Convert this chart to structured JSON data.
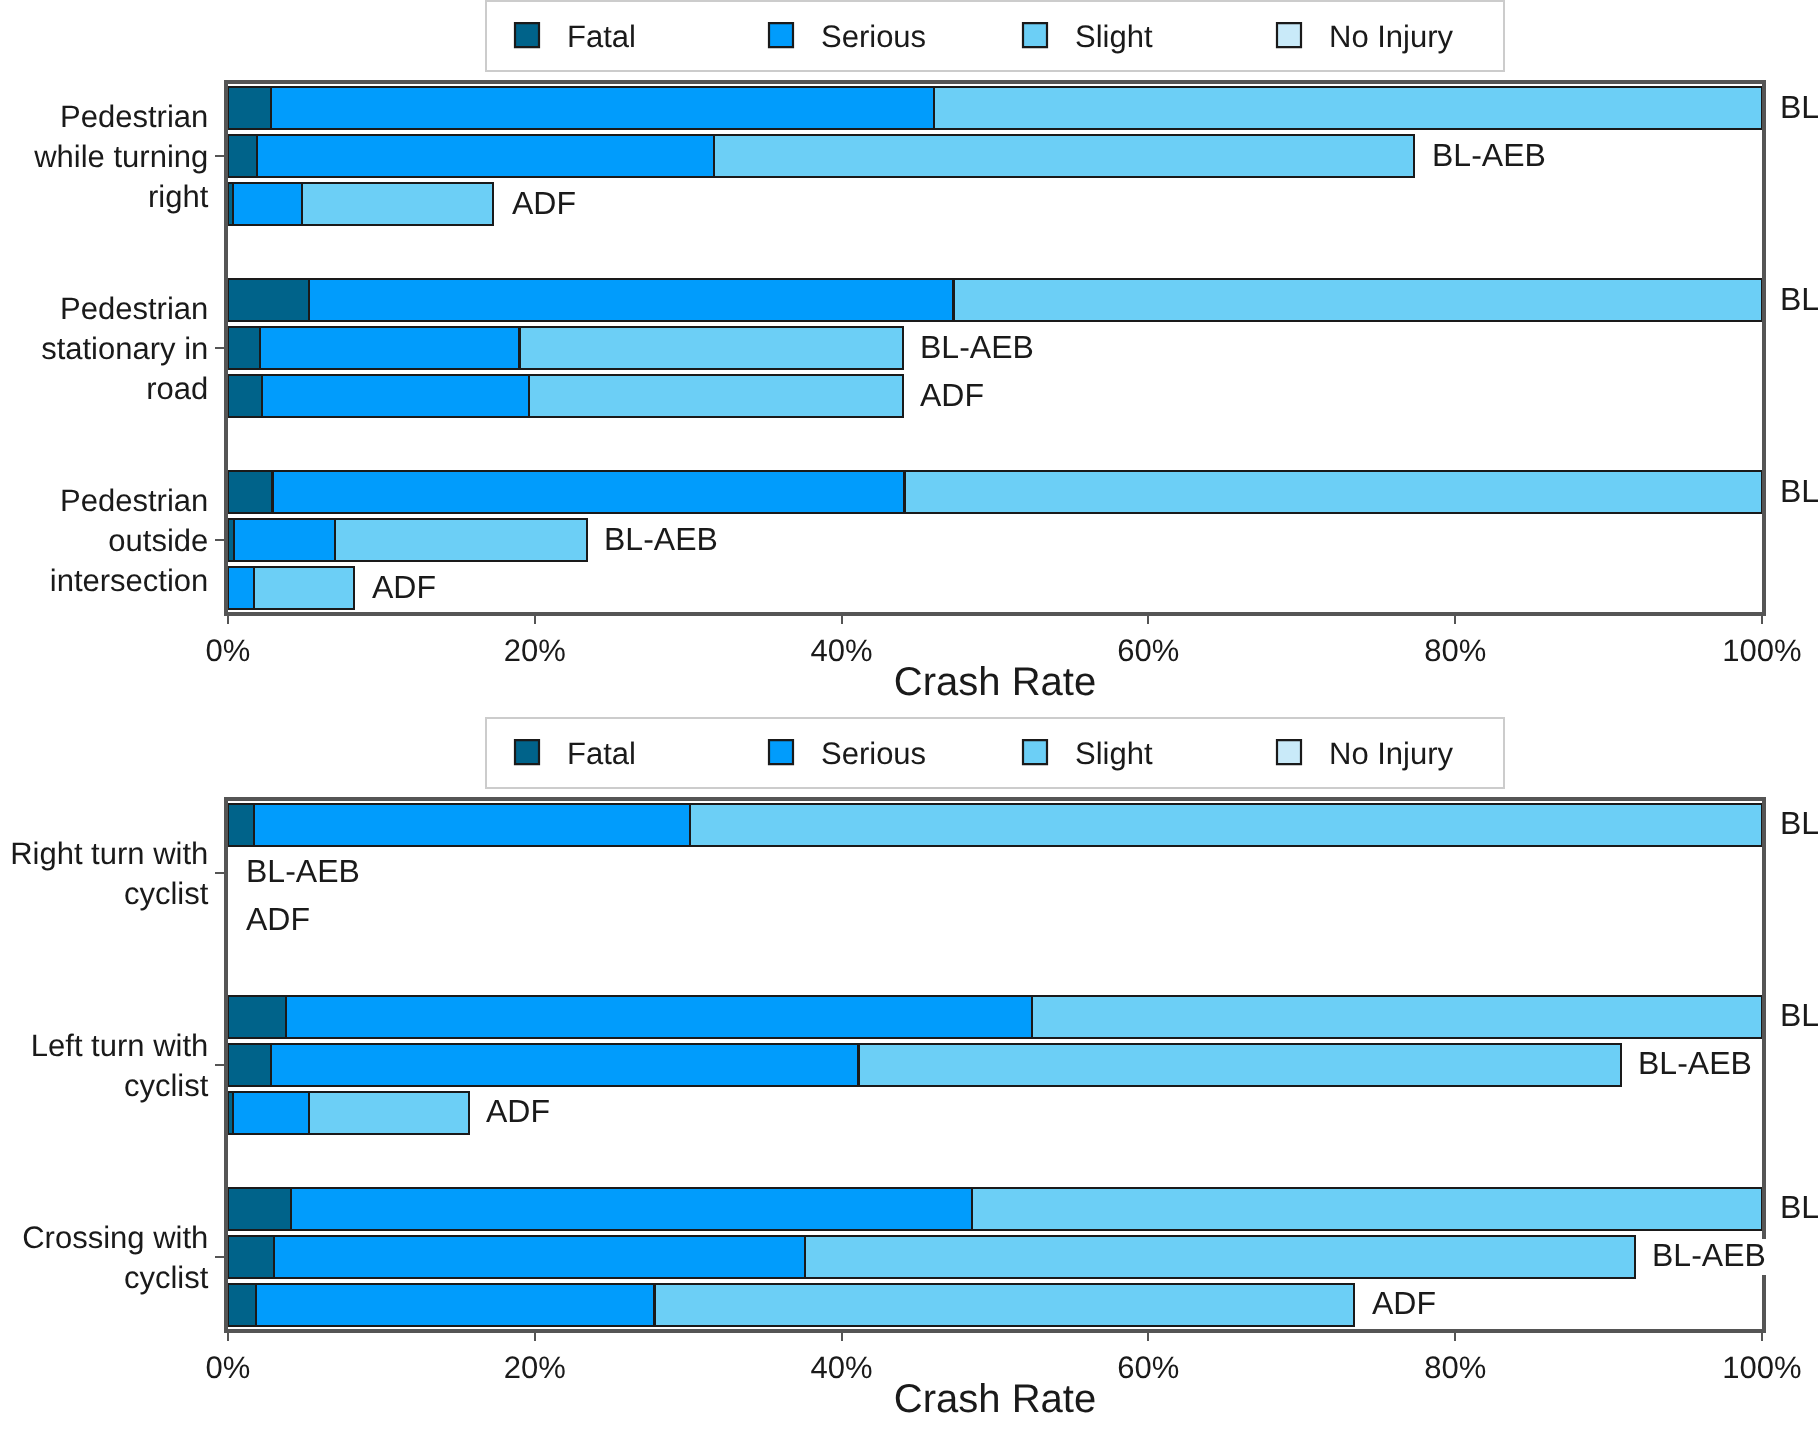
{
  "chart_data": [
    {
      "type": "bar",
      "orientation": "horizontal",
      "stacked": true,
      "categories": [
        null,
        "Pedestrian while turning right",
        null,
        null,
        null,
        "Pedestrian stationary in road",
        null,
        null,
        null,
        "Pedestrian outside intersection",
        null
      ],
      "series": [
        {
          "name": "Fatal",
          "color": "#00638a",
          "values": [
            2.8,
            1.9,
            0.3,
            null,
            5.3,
            2.1,
            2.2,
            null,
            2.9,
            0.4,
            null
          ]
        },
        {
          "name": "Serious",
          "color": "#019cfc",
          "values": [
            43.2,
            29.8,
            4.5,
            null,
            42.0,
            16.9,
            17.4,
            null,
            41.2,
            6.6,
            1.7
          ]
        },
        {
          "name": "Slight",
          "color": "#6ccff6",
          "values": [
            54.0,
            45.6,
            12.5,
            null,
            52.7,
            25.0,
            24.4,
            null,
            55.9,
            16.4,
            6.5
          ],
          "value_labels": [
            "BL",
            "BL-AEB",
            "ADF",
            null,
            "BL",
            "BL-AEB",
            "ADF",
            null,
            "BL",
            "BL-AEB",
            "ADF"
          ]
        },
        {
          "name": "No Injury",
          "color": "#c9eaf9",
          "values": [
            null,
            null,
            null,
            null,
            null,
            null,
            null,
            null,
            null,
            null,
            null
          ]
        }
      ],
      "xlabel": "Crash Rate",
      "xlim": [
        0,
        100
      ],
      "xticks": [
        {
          "value": 0,
          "label": "0%"
        },
        {
          "value": 20,
          "label": "20%"
        },
        {
          "value": 40,
          "label": "40%"
        },
        {
          "value": 60,
          "label": "60%"
        },
        {
          "value": 80,
          "label": "80%"
        },
        {
          "value": 100,
          "label": "100%"
        }
      ],
      "legend": "top"
    },
    {
      "type": "bar",
      "orientation": "horizontal",
      "stacked": true,
      "categories": [
        null,
        "Right turn with cyclist",
        null,
        null,
        null,
        "Left turn with cyclist",
        null,
        null,
        null,
        "Crossing with cyclist",
        null
      ],
      "series": [
        {
          "name": "Fatal",
          "color": "#00638a",
          "values": [
            1.7,
            null,
            null,
            null,
            3.8,
            2.8,
            0.3,
            null,
            4.1,
            3.0,
            1.8
          ]
        },
        {
          "name": "Serious",
          "color": "#019cfc",
          "values": [
            28.4,
            null,
            null,
            null,
            48.6,
            38.3,
            5.0,
            null,
            44.4,
            34.6,
            26.0
          ]
        },
        {
          "name": "Slight",
          "color": "#6ccff6",
          "values": [
            69.9,
            null,
            null,
            null,
            47.6,
            49.7,
            10.4,
            null,
            51.5,
            54.1,
            45.6
          ],
          "value_labels": [
            "BL",
            "BL-AEB",
            "ADF",
            null,
            "BL",
            "BL-AEB",
            "ADF",
            null,
            "BL",
            "BL-AEB",
            "ADF"
          ]
        },
        {
          "name": "No Injury",
          "color": "#c9eaf9",
          "values": [
            null,
            null,
            null,
            null,
            null,
            null,
            null,
            null,
            null,
            null,
            null
          ]
        }
      ],
      "xlabel": "Crash Rate",
      "xlim": [
        0,
        100
      ],
      "xticks": [
        {
          "value": 0,
          "label": "0%"
        },
        {
          "value": 20,
          "label": "20%"
        },
        {
          "value": 40,
          "label": "40%"
        },
        {
          "value": 60,
          "label": "60%"
        },
        {
          "value": 80,
          "label": "80%"
        },
        {
          "value": 100,
          "label": "100%"
        }
      ],
      "legend": "top"
    }
  ]
}
